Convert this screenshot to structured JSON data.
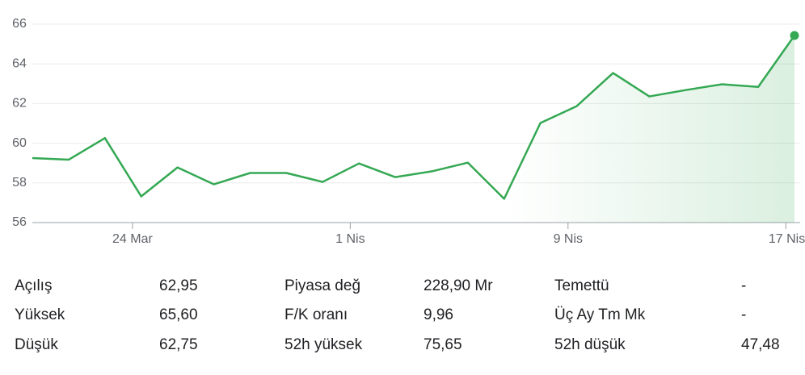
{
  "chart_data": {
    "type": "line",
    "categories": [
      null,
      null,
      null,
      "24 Mar",
      null,
      null,
      null,
      null,
      null,
      "1 Nis",
      null,
      null,
      null,
      null,
      null,
      "9 Nis",
      null,
      null,
      null,
      null,
      null,
      "17 Nis"
    ],
    "series": [
      {
        "color": "#34a853",
        "values": [
          59.25,
          59.17,
          60.26,
          57.32,
          58.78,
          57.93,
          58.5,
          58.5,
          58.05,
          58.98,
          58.29,
          58.58,
          59.02,
          57.2,
          61.02,
          61.87,
          63.54,
          62.36,
          62.68,
          62.97,
          62.84,
          65.43
        ]
      }
    ],
    "ylim": [
      56,
      66
    ],
    "yticks": [
      56,
      58,
      60,
      62,
      64,
      66
    ],
    "grid": true
  },
  "stats": [
    [
      [
        "Açılış",
        "62,95"
      ],
      [
        "Piyasa değ",
        "228,90 Mr"
      ],
      [
        "Temettü",
        "-"
      ]
    ],
    [
      [
        "Yüksek",
        "65,60"
      ],
      [
        "F/K oranı",
        "9,96"
      ],
      [
        "Üç Ay Tm Mk",
        "-"
      ]
    ],
    [
      [
        "Düşük",
        "62,75"
      ],
      [
        "52h yüksek",
        "75,65"
      ],
      [
        "52h düşük",
        "47,48"
      ]
    ]
  ]
}
